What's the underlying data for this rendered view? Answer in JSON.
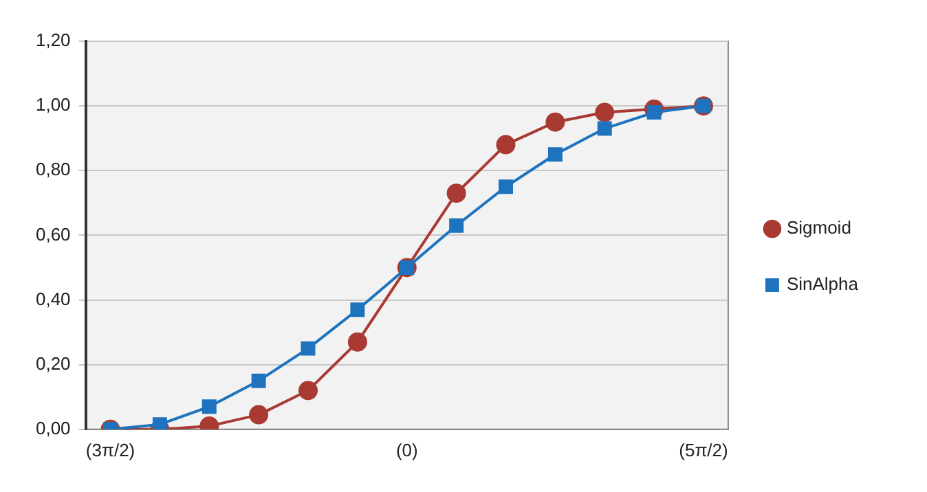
{
  "chart_data": {
    "type": "line",
    "categories": [
      "(3π/2)",
      null,
      null,
      null,
      null,
      null,
      "(0)",
      null,
      null,
      null,
      null,
      null,
      "(5π/2)"
    ],
    "series": [
      {
        "name": "Sigmoid",
        "color": "#a83a32",
        "marker": "circle",
        "values": [
          0.0,
          0.0,
          0.01,
          0.045,
          0.12,
          0.27,
          0.5,
          0.73,
          0.88,
          0.95,
          0.98,
          0.99,
          1.0
        ]
      },
      {
        "name": "SinAlpha",
        "color": "#1e73be",
        "marker": "square",
        "values": [
          0.0,
          0.015,
          0.07,
          0.15,
          0.25,
          0.37,
          0.5,
          0.63,
          0.75,
          0.85,
          0.93,
          0.98,
          1.0
        ]
      }
    ],
    "ylim": [
      0,
      1.2
    ],
    "yticks": [
      {
        "value": 0,
        "label": "0,00"
      },
      {
        "value": 0.2,
        "label": "0,20"
      },
      {
        "value": 0.4,
        "label": "0,40"
      },
      {
        "value": 0.6,
        "label": "0,60"
      },
      {
        "value": 0.8,
        "label": "0,80"
      },
      {
        "value": 1,
        "label": "1,00"
      },
      {
        "value": 1.2,
        "label": "1,20"
      }
    ],
    "grid": "y",
    "legend": "right"
  }
}
